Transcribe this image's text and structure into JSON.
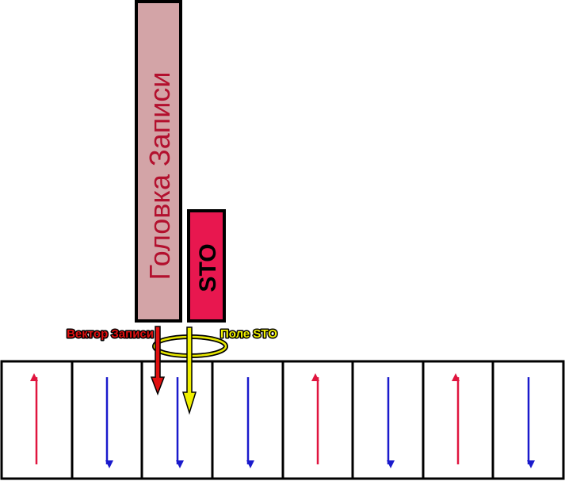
{
  "head": {
    "label": "Головка Записи"
  },
  "sto": {
    "label": "STO"
  },
  "labels": {
    "write_vector": "Вектор Записи",
    "sto_field": "Поле STO"
  }
}
